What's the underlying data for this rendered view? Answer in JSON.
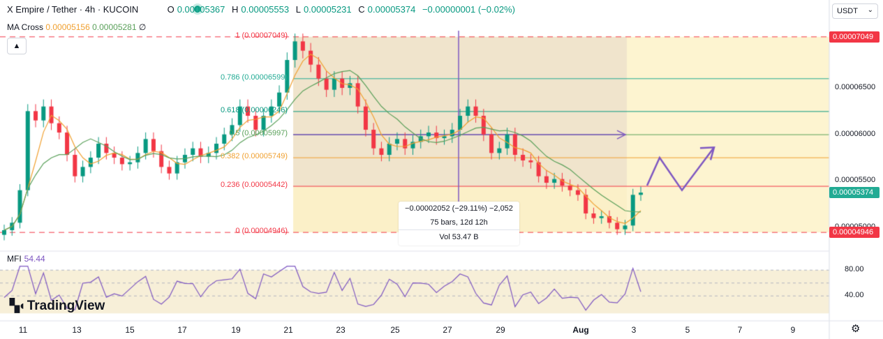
{
  "header": {
    "symbol": "X Empire / Tether · 4h · KUCOIN",
    "o_label": "O",
    "o_value": "0.00005367",
    "h_label": "H",
    "h_value": "0.00005553",
    "l_label": "L",
    "l_value": "0.00005231",
    "c_label": "C",
    "c_value": "0.00005374",
    "change": "−0.00000001 (−0.02%)"
  },
  "ma_cross": {
    "label": "MA Cross",
    "fast": "0.00005156",
    "slow": "0.00005281",
    "extra": "∅"
  },
  "currency_select": {
    "value": "USDT"
  },
  "colors": {
    "up": "#089981",
    "down": "#f23645",
    "ma_fast": "#f0a030",
    "ma_slow": "#5aa05a",
    "fib_line": "#7e57c2",
    "mfi": "#7e57c2",
    "tag": "#f23645",
    "last_tag": "#22ab94"
  },
  "price_axis": [
    "0.00007000",
    "0.00006500",
    "0.00006000",
    "0.00005500",
    "0.00005000"
  ],
  "price_tags": {
    "top": "0.00007049",
    "last": "0.00005374",
    "bottom": "0.00004946"
  },
  "fib_levels": [
    {
      "ratio": "1",
      "label": "1 (0.00007049)",
      "price": 7.049e-05,
      "color": "#f23645"
    },
    {
      "ratio": "0.786",
      "label": "0.786 (0.00006599)",
      "price": 6.599e-05,
      "color": "#22ab94"
    },
    {
      "ratio": "0.618",
      "label": "0.618 (0.00006246)",
      "price": 6.246e-05,
      "color": "#089981"
    },
    {
      "ratio": "0.5",
      "label": "0.5 (0.00005997)",
      "price": 5.997e-05,
      "color": "#5aa05a"
    },
    {
      "ratio": "0.382",
      "label": "0.382 (0.00005749)",
      "price": 5.749e-05,
      "color": "#f0a030"
    },
    {
      "ratio": "0.236",
      "label": "0.236 (0.00005442)",
      "price": 5.442e-05,
      "color": "#f23645"
    },
    {
      "ratio": "0",
      "label": "0 (0.00004946)",
      "price": 4.946e-05,
      "color": "#f23645"
    }
  ],
  "measure_tooltip": {
    "line1": "−0.00002052 (−29.11%) −2,052",
    "line2": "75 bars, 12d 12h",
    "line3": "Vol 53.47 B"
  },
  "mfi": {
    "label": "MFI",
    "value": "54.44",
    "levels": [
      "80.00",
      "40.00"
    ]
  },
  "x_axis": [
    {
      "label": "11"
    },
    {
      "label": "13"
    },
    {
      "label": "15"
    },
    {
      "label": "17"
    },
    {
      "label": "19"
    },
    {
      "label": "21"
    },
    {
      "label": "23"
    },
    {
      "label": "25"
    },
    {
      "label": "27"
    },
    {
      "label": "29"
    },
    {
      "label": "Aug",
      "bold": true
    },
    {
      "label": "3"
    },
    {
      "label": "5"
    },
    {
      "label": "7"
    },
    {
      "label": "9"
    }
  ],
  "logo": {
    "text": "TradingView"
  },
  "chart_data": {
    "type": "candlestick",
    "title": "X Empire / Tether · 4h · KUCOIN",
    "y_range": [
      4.76e-05,
      7.22e-05
    ],
    "last_close": 5.374e-05,
    "series": [
      {
        "name": "price",
        "close_path": [
          4.97e-05,
          5.05e-05,
          5.4e-05,
          6.25e-05,
          6.15e-05,
          6.3e-05,
          6.12e-05,
          6.02e-05,
          5.78e-05,
          5.55e-05,
          5.65e-05,
          5.75e-05,
          5.9e-05,
          5.8e-05,
          5.75e-05,
          5.68e-05,
          5.7e-05,
          5.8e-05,
          5.95e-05,
          5.82e-05,
          5.65e-05,
          5.58e-05,
          5.7e-05,
          5.78e-05,
          5.85e-05,
          5.76e-05,
          5.8e-05,
          5.9e-05,
          6e-05,
          6.1e-05,
          6.3e-05,
          6.2e-05,
          6.05e-05,
          6.2e-05,
          6.3e-05,
          6.45e-05,
          6.8e-05,
          7e-05,
          6.9e-05,
          6.75e-05,
          6.6e-05,
          6.48e-05,
          6.6e-05,
          6.5e-05,
          6.55e-05,
          6.3e-05,
          6.05e-05,
          5.85e-05,
          5.78e-05,
          5.9e-05,
          5.95e-05,
          5.85e-05,
          5.92e-05,
          5.98e-05,
          6.02e-05,
          5.96e-05,
          5.98e-05,
          6.05e-05,
          6.2e-05,
          6.3e-05,
          6.2e-05,
          6e-05,
          5.8e-05,
          5.85e-05,
          6e-05,
          5.78e-05,
          5.72e-05,
          5.7e-05,
          5.55e-05,
          5.48e-05,
          5.52e-05,
          5.45e-05,
          5.4e-05,
          5.35e-05,
          5.15e-05,
          5.1e-05,
          5.12e-05,
          5.05e-05,
          4.98e-05,
          5.02e-05,
          5.35e-05,
          5.374e-05
        ]
      },
      {
        "name": "MA Cross",
        "values": []
      }
    ],
    "mfi": {
      "value": 54.44,
      "range": [
        10,
        90
      ],
      "levels": [
        80,
        40
      ]
    },
    "arrow_target": 5.86e-05
  }
}
